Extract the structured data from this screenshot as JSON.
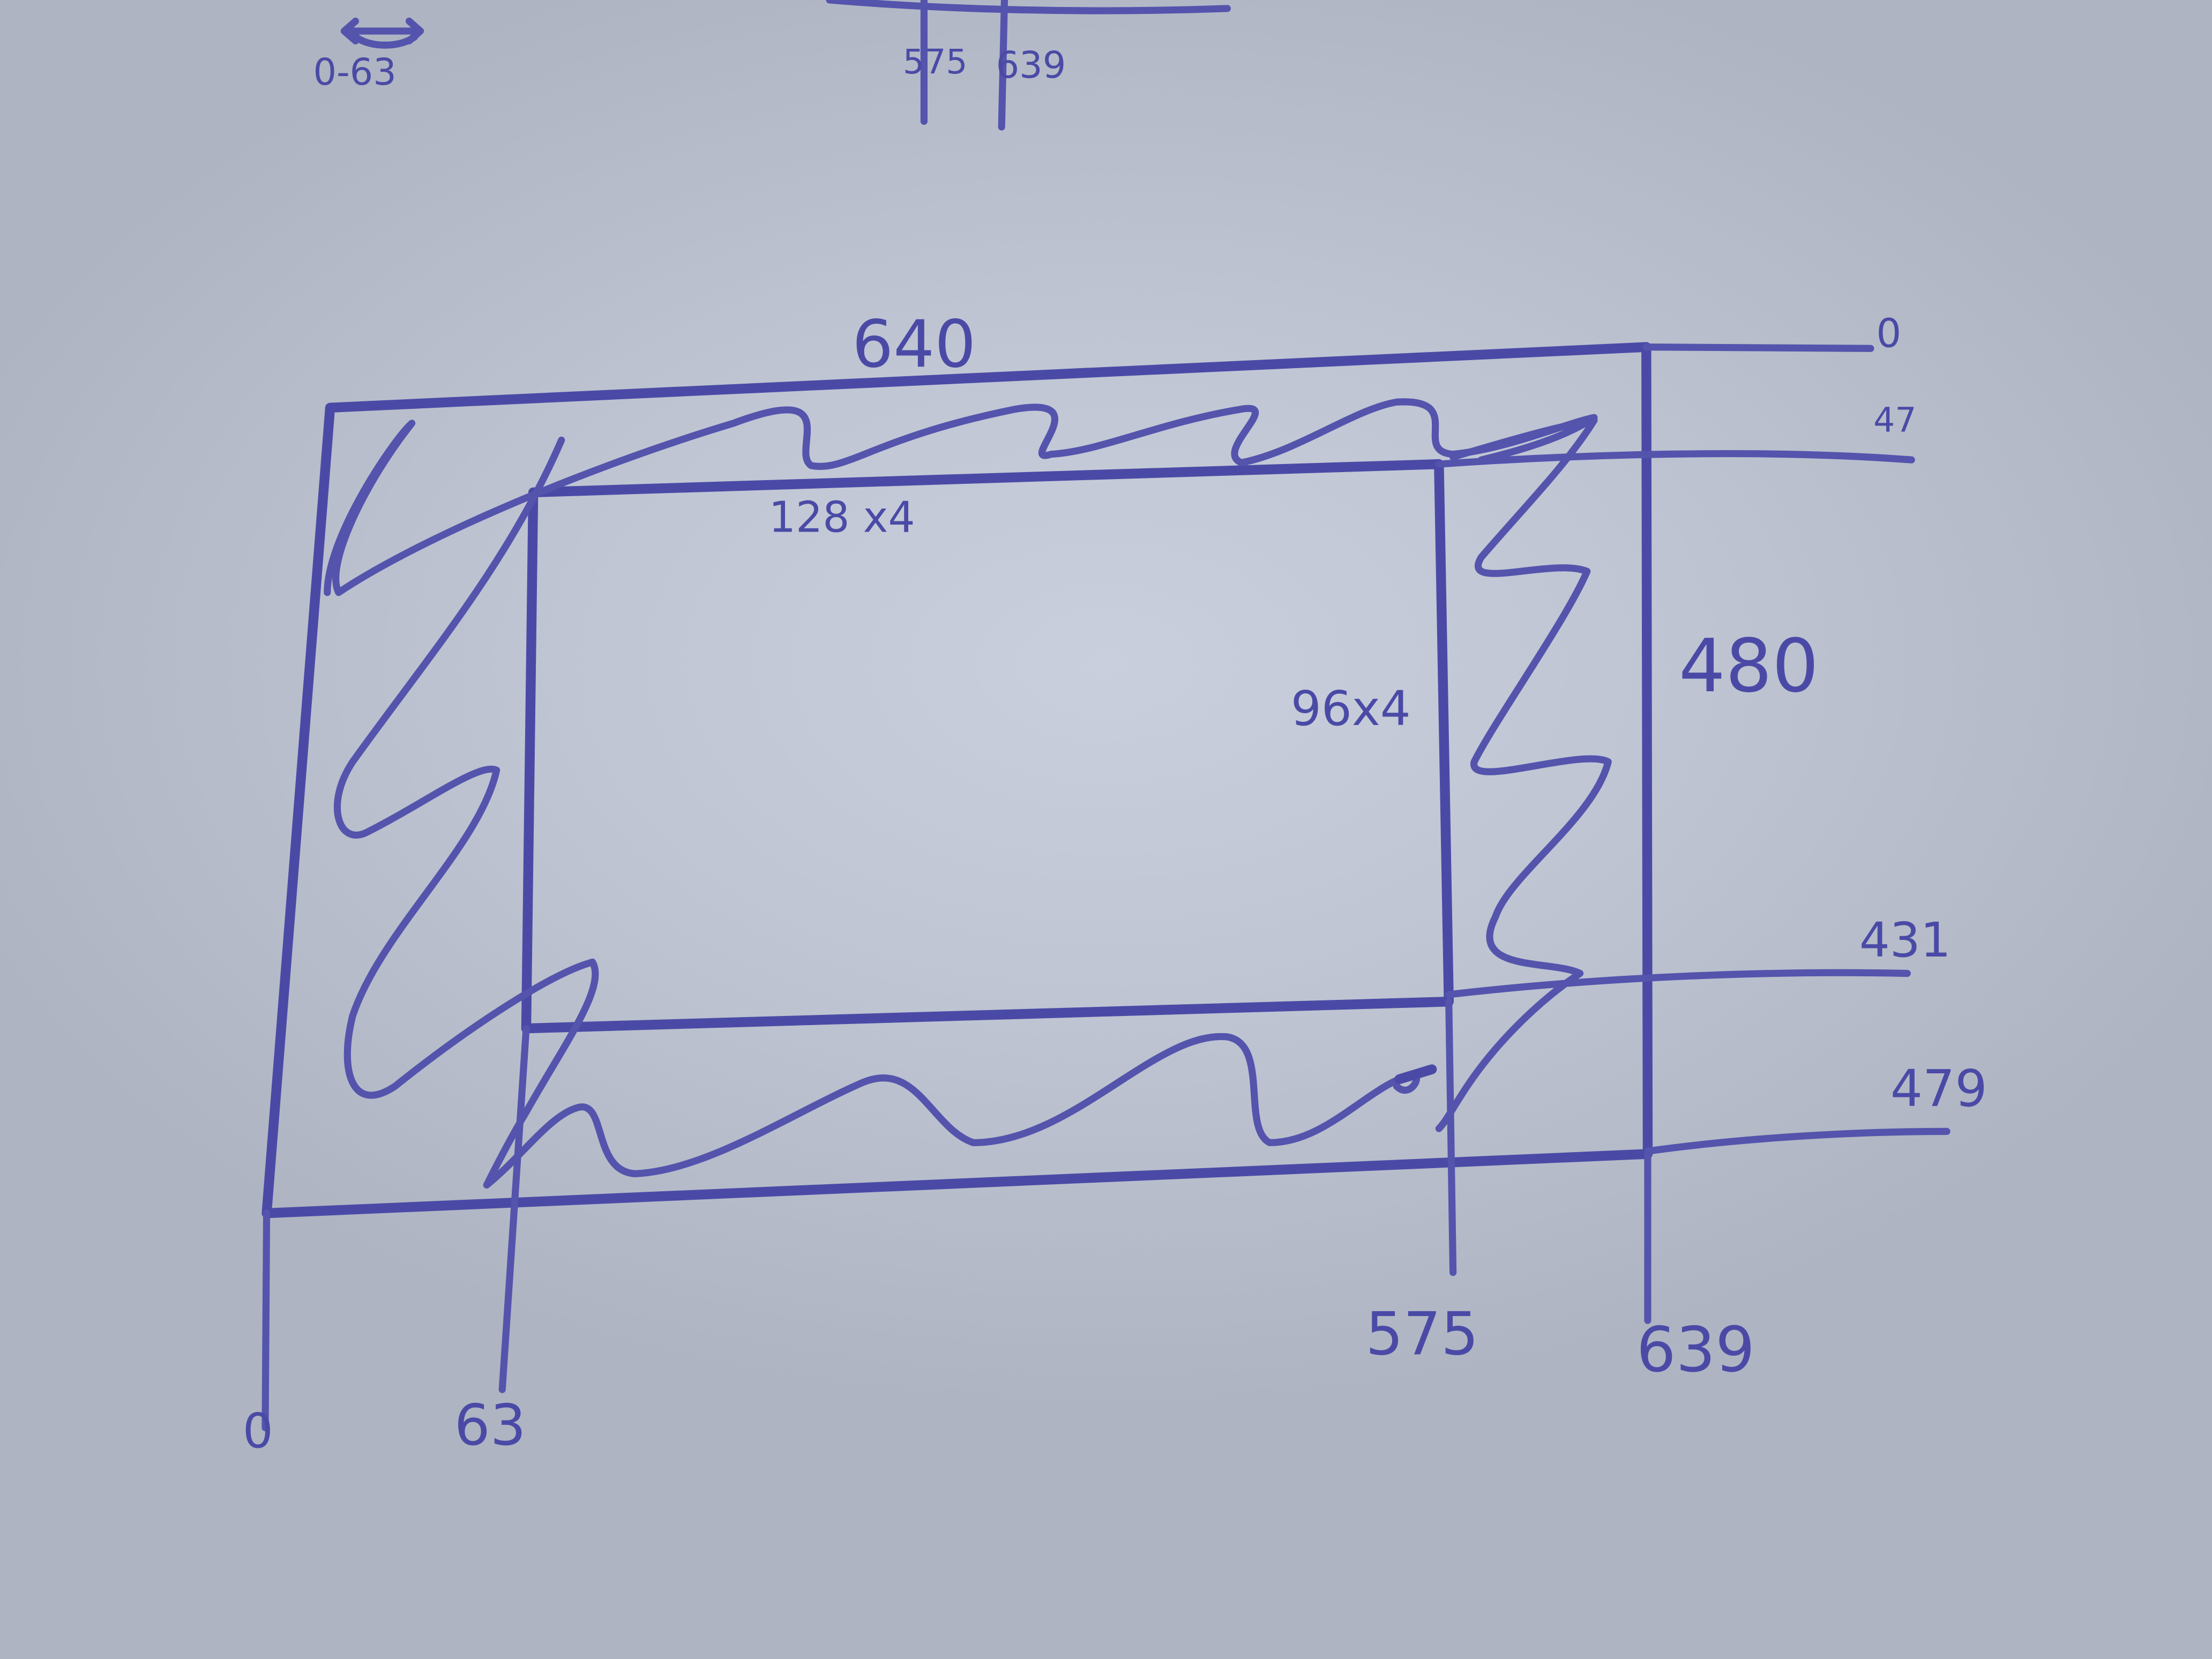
{
  "top_fragment": {
    "range_label": "0-63",
    "tick_a": "575",
    "tick_b": "639"
  },
  "frame": {
    "width_label": "640",
    "height_label": "480"
  },
  "border": {
    "horizontal_label": "128 x4",
    "vertical_label": "96x4"
  },
  "axis_x": {
    "tick_0": "0",
    "tick_63": "63",
    "tick_575": "575",
    "tick_639": "639"
  },
  "axis_y": {
    "tick_0": "0",
    "tick_47": "47",
    "tick_431": "431",
    "tick_479": "479"
  },
  "colors": {
    "ink": "#4a4aa6",
    "paper": "#c4cad7"
  }
}
